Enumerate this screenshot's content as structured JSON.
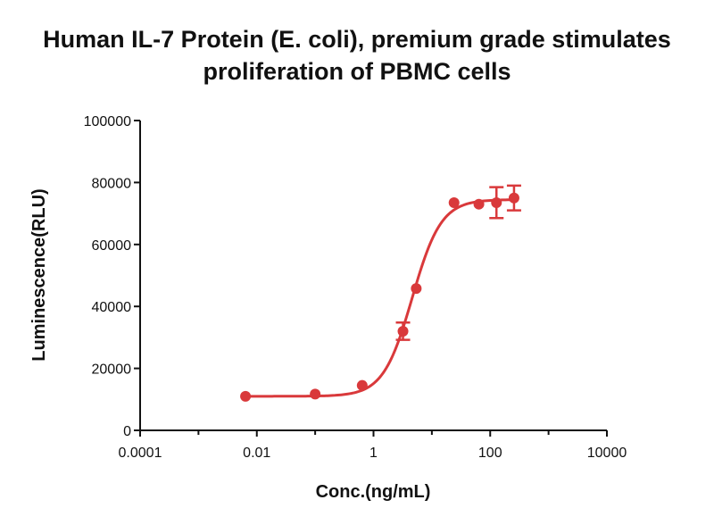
{
  "title_lines": [
    "Human IL-7 Protein (E. coli), premium grade stimulates",
    "proliferation of PBMC cells"
  ],
  "chart_data": {
    "type": "scatter",
    "title": "Human IL-7 Protein (E. coli), premium grade stimulates proliferation of PBMC cells",
    "xlabel": "Conc.(ng/mL)",
    "ylabel": "Luminescence(RLU)",
    "xscale": "log",
    "xlim": [
      0.0001,
      10000
    ],
    "ylim": [
      0,
      100000
    ],
    "xticks": [
      "0.0001",
      "0.01",
      "1",
      "100",
      "10000"
    ],
    "yticks": [
      "0",
      "20000",
      "40000",
      "60000",
      "80000",
      "100000"
    ],
    "color": "#d9393b",
    "grid": false,
    "points": [
      {
        "x": 0.0064,
        "y": 11000,
        "err": 0
      },
      {
        "x": 0.1,
        "y": 11700,
        "err": 0
      },
      {
        "x": 0.64,
        "y": 14500,
        "err": 0
      },
      {
        "x": 3.2,
        "y": 32000,
        "err": 2800
      },
      {
        "x": 5.4,
        "y": 45800,
        "err": 0
      },
      {
        "x": 24,
        "y": 73500,
        "err": 0
      },
      {
        "x": 64,
        "y": 73000,
        "err": 0
      },
      {
        "x": 128,
        "y": 73500,
        "err": 5000
      },
      {
        "x": 256,
        "y": 75000,
        "err": 4000
      }
    ],
    "fit": {
      "model": "4PL",
      "bottom": 11000,
      "top": 74500,
      "ec50": 4.6,
      "hill": 1.75
    }
  }
}
